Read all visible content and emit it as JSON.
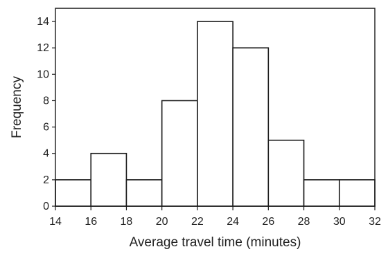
{
  "chart_data": {
    "type": "bar",
    "title": "",
    "xlabel": "Average travel time (minutes)",
    "ylabel": "Frequency",
    "bins": [
      {
        "start": 14,
        "end": 16,
        "frequency": 2
      },
      {
        "start": 16,
        "end": 18,
        "frequency": 4
      },
      {
        "start": 18,
        "end": 20,
        "frequency": 2
      },
      {
        "start": 20,
        "end": 22,
        "frequency": 8
      },
      {
        "start": 22,
        "end": 24,
        "frequency": 14
      },
      {
        "start": 24,
        "end": 26,
        "frequency": 12
      },
      {
        "start": 26,
        "end": 28,
        "frequency": 5
      },
      {
        "start": 28,
        "end": 30,
        "frequency": 2
      },
      {
        "start": 30,
        "end": 32,
        "frequency": 2
      }
    ],
    "xlim": [
      14,
      32
    ],
    "ylim": [
      0,
      15
    ],
    "x_ticks": [
      14,
      16,
      18,
      20,
      22,
      24,
      26,
      28,
      30,
      32
    ],
    "y_ticks": [
      0,
      2,
      4,
      6,
      8,
      10,
      12,
      14
    ],
    "grid": false,
    "bar_fill": "#ffffff",
    "bar_stroke": "#1a1a1a"
  }
}
